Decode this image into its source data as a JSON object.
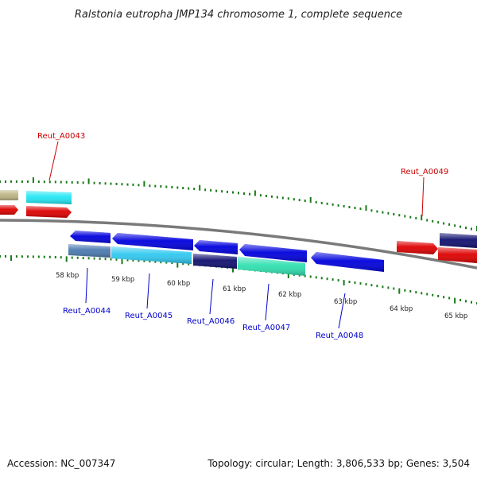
{
  "title": "Ralstonia eutropha JMP134 chromosome 1, complete sequence",
  "footer": {
    "accession": "Accession: NC_007347",
    "summary": "Topology: circular; Length: 3,806,533 bp; Genes: 3,504"
  },
  "kbp_labels": [
    "58 kbp",
    "59 kbp",
    "60 kbp",
    "61 kbp",
    "62 kbp",
    "63 kbp",
    "64 kbp",
    "65 kbp"
  ],
  "gene_labels": [
    "Reut_A0043",
    "Reut_A0044",
    "Reut_A0045",
    "Reut_A0046",
    "Reut_A0047",
    "Reut_A0048",
    "Reut_A0049"
  ],
  "colors": {
    "forward": "#dd0000",
    "reverse": "#0000dd",
    "backbone": "#7a7a7a",
    "tick": "#1a7a1a",
    "khaki": "#bdb585",
    "cyan": "#22e6f4",
    "steel": "#4a7ab0",
    "sky": "#30c8f0",
    "navy": "#101070",
    "teal": "#30e0b0"
  }
}
